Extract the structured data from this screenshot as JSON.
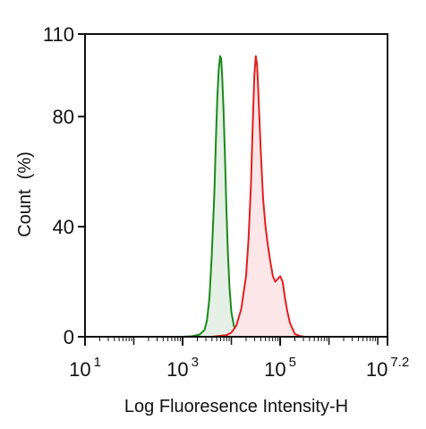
{
  "chart_data": {
    "type": "area",
    "title": "",
    "xlabel": "Log Fluoresence Intensity-H",
    "ylabel": "Count  (%)",
    "x_scale": "log10",
    "xlim": [
      10,
      15848932
    ],
    "ylim": [
      0,
      110
    ],
    "x_ticks": [
      {
        "base": "10",
        "exp": "1",
        "value": 10
      },
      {
        "base": "10",
        "exp": "3",
        "value": 1000
      },
      {
        "base": "10",
        "exp": "5",
        "value": 100000
      },
      {
        "base": "10",
        "exp": "7.2",
        "value": 15848932
      }
    ],
    "y_ticks": [
      {
        "label": "0",
        "value": 0
      },
      {
        "label": "40",
        "value": 40
      },
      {
        "label": "80",
        "value": 80
      },
      {
        "label": "110",
        "value": 110
      }
    ],
    "grid": false,
    "legend": "none",
    "series": [
      {
        "color": "#1a8a1a",
        "fill": "#e6f0e6",
        "points": [
          [
            1000,
            0
          ],
          [
            1585,
            0.2
          ],
          [
            2239,
            0.8
          ],
          [
            2818,
            2.5
          ],
          [
            3162,
            6
          ],
          [
            3548,
            14
          ],
          [
            3981,
            30
          ],
          [
            4467,
            52
          ],
          [
            4786,
            70
          ],
          [
            5128,
            86
          ],
          [
            5495,
            97
          ],
          [
            5888,
            102
          ],
          [
            6166,
            101
          ],
          [
            6457,
            95
          ],
          [
            6918,
            82
          ],
          [
            7413,
            64
          ],
          [
            7943,
            45
          ],
          [
            8511,
            30
          ],
          [
            9120,
            18
          ],
          [
            10000,
            9
          ],
          [
            11220,
            4
          ],
          [
            12589,
            2
          ],
          [
            14125,
            1
          ],
          [
            15849,
            0.4
          ],
          [
            19953,
            0
          ]
        ]
      },
      {
        "color": "#e02020",
        "fill": "#fde6e8",
        "points": [
          [
            3981,
            0
          ],
          [
            7943,
            0.6
          ],
          [
            10000,
            1.5
          ],
          [
            12589,
            4
          ],
          [
            15849,
            10
          ],
          [
            19953,
            22
          ],
          [
            22387,
            35
          ],
          [
            25119,
            55
          ],
          [
            27542,
            78
          ],
          [
            29512,
            95
          ],
          [
            31623,
            102
          ],
          [
            33497,
            99
          ],
          [
            35481,
            90
          ],
          [
            39811,
            68
          ],
          [
            44668,
            50
          ],
          [
            50119,
            40
          ],
          [
            56234,
            33
          ],
          [
            63096,
            27
          ],
          [
            70795,
            22
          ],
          [
            79433,
            20
          ],
          [
            89125,
            21
          ],
          [
            100000,
            22
          ],
          [
            112202,
            20
          ],
          [
            125893,
            14
          ],
          [
            141254,
            9
          ],
          [
            158489,
            5
          ],
          [
            177828,
            3
          ],
          [
            199526,
            1
          ],
          [
            251189,
            0.3
          ],
          [
            316228,
            0
          ]
        ]
      }
    ]
  }
}
